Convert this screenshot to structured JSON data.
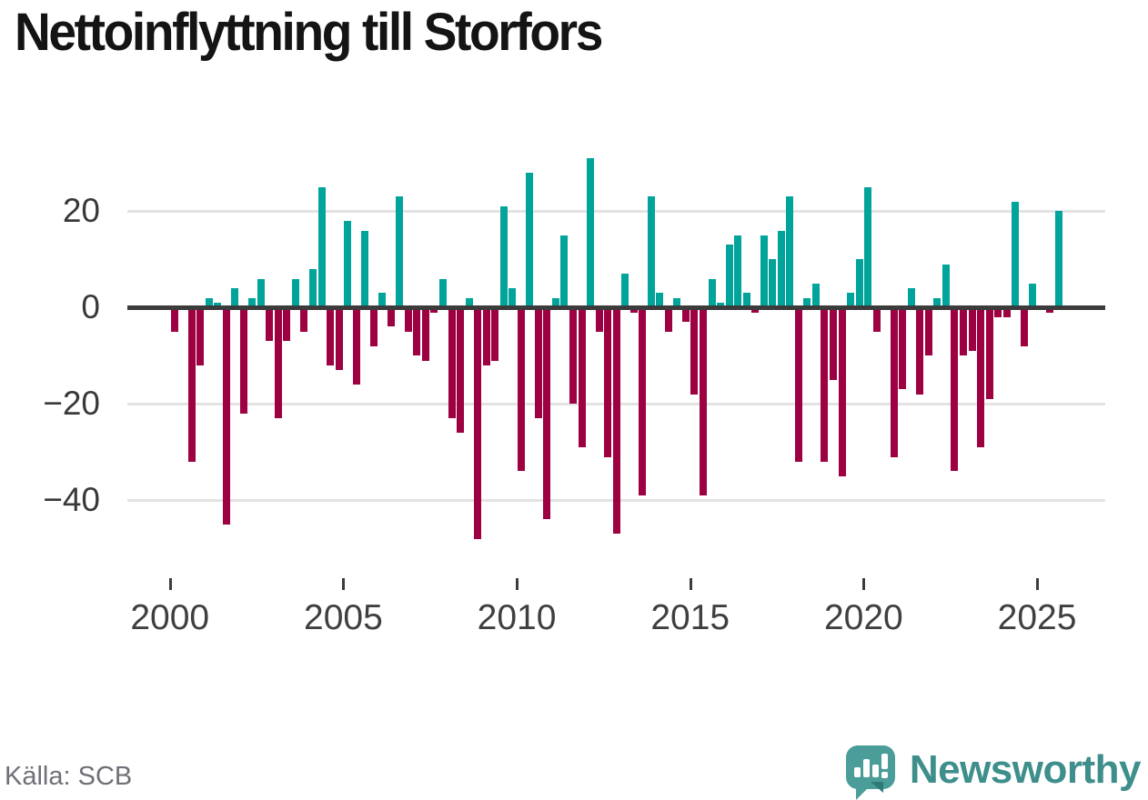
{
  "title": "Nettoinflyttning till Storfors",
  "source": "Källa: SCB",
  "brand": {
    "name": "Newsworthy",
    "text_color": "#3e8e8b",
    "icon_color": "#4a9d99",
    "icon_fold_color": "#2e7b78",
    "icon_glyph_color": "#ffffff"
  },
  "chart_data": {
    "type": "bar",
    "title": "Nettoinflyttning till Storfors",
    "frequency": "quarterly",
    "start_period": "2000-Q1",
    "end_period": "2025-Q3",
    "grid": true,
    "legend": false,
    "ylim": [
      -50,
      33
    ],
    "y_ticks": [
      {
        "value": 20,
        "label": "20"
      },
      {
        "value": 0,
        "label": "0"
      },
      {
        "value": -20,
        "label": "−20"
      },
      {
        "value": -40,
        "label": "−40"
      }
    ],
    "x_tick_years": [
      {
        "year": 2000,
        "label": "2000"
      },
      {
        "year": 2005,
        "label": "2005"
      },
      {
        "year": 2010,
        "label": "2010"
      },
      {
        "year": 2015,
        "label": "2015"
      },
      {
        "year": 2020,
        "label": "2020"
      },
      {
        "year": 2025,
        "label": "2025"
      }
    ],
    "positive_color": "#00a49b",
    "negative_color": "#9d0141",
    "values": [
      -5,
      0,
      -32,
      -12,
      2,
      1,
      -45,
      4,
      -22,
      2,
      6,
      -7,
      -23,
      -7,
      6,
      -5,
      8,
      25,
      -12,
      -13,
      18,
      -16,
      16,
      -8,
      3,
      -4,
      23,
      -5,
      -10,
      -11,
      -1,
      6,
      -23,
      -26,
      2,
      -48,
      -12,
      -11,
      21,
      4,
      -34,
      28,
      -23,
      -44,
      2,
      15,
      -20,
      -29,
      31,
      -5,
      -31,
      -47,
      7,
      -1,
      -39,
      23,
      3,
      -5,
      2,
      -3,
      -18,
      -39,
      6,
      1,
      13,
      15,
      3,
      -1,
      15,
      10,
      16,
      23,
      -32,
      2,
      5,
      -32,
      -15,
      -35,
      3,
      10,
      25,
      -5,
      0,
      -31,
      -17,
      4,
      -18,
      -10,
      2,
      9,
      -34,
      -10,
      -9,
      -29,
      -19,
      -2,
      -2,
      22,
      -8,
      5,
      0,
      -1,
      20
    ]
  }
}
